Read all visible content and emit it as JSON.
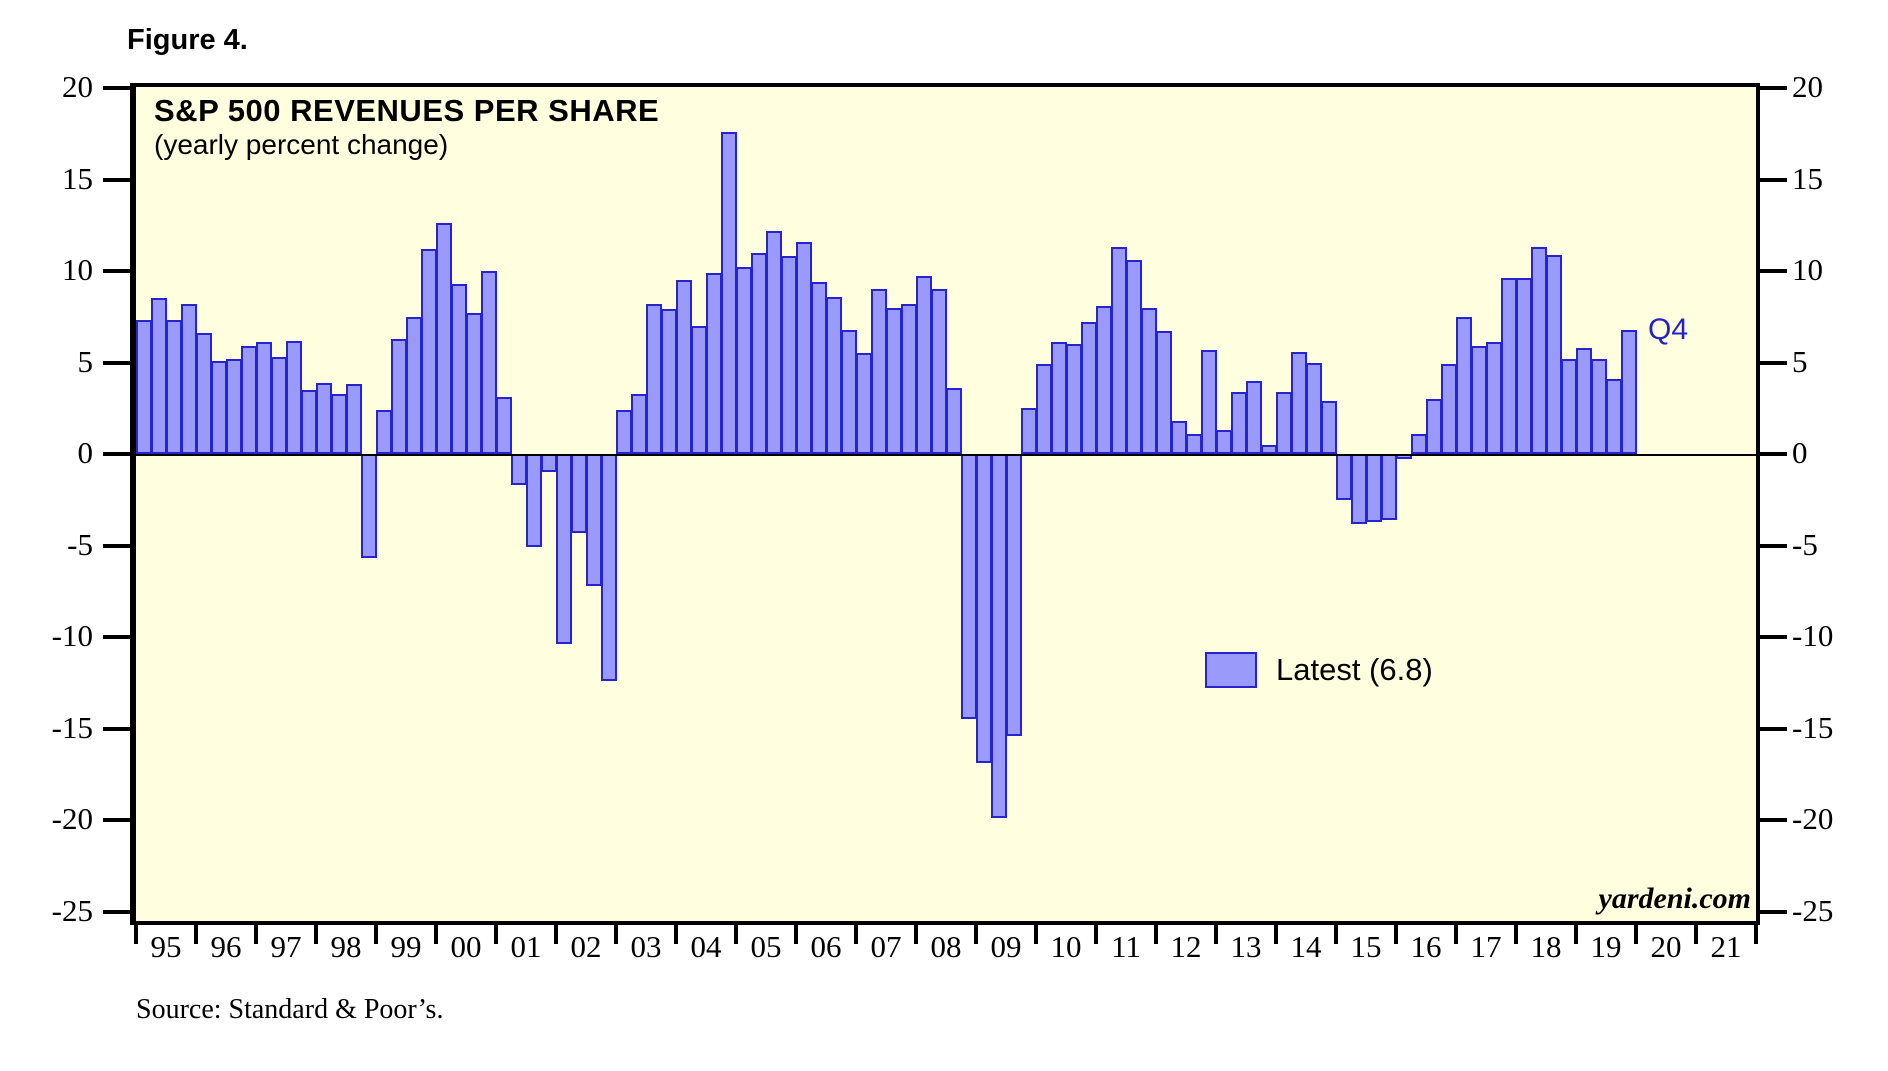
{
  "figure_label": "Figure 4.",
  "title": "S&P 500 REVENUES PER SHARE",
  "subtitle": "(yearly percent change)",
  "legend": {
    "label": "Latest (6.8)",
    "latest_value": 6.8
  },
  "annotations": {
    "last_bar_label": "Q4",
    "watermark": "yardeni.com"
  },
  "source_note": "Source: Standard & Poor’s.",
  "colors": {
    "plot_background": "#ffffe0",
    "bar_fill": "#999af9",
    "bar_border": "#2524ce",
    "annotation_blue": "#2222cc",
    "axis_black": "#000000"
  },
  "y_axis": {
    "ticks": [
      20,
      15,
      10,
      5,
      0,
      -5,
      -10,
      -15,
      -20,
      -25
    ],
    "max": 20.1,
    "min": -25.5
  },
  "x_axis": {
    "year_labels": [
      "95",
      "96",
      "97",
      "98",
      "99",
      "00",
      "01",
      "02",
      "03",
      "04",
      "05",
      "06",
      "07",
      "08",
      "09",
      "10",
      "11",
      "12",
      "13",
      "14",
      "15",
      "16",
      "17",
      "18",
      "19",
      "20",
      "21"
    ]
  },
  "chart_data": {
    "type": "bar",
    "title": "S&P 500 REVENUES PER SHARE (yearly percent change)",
    "xlabel": "",
    "ylabel": "yearly percent change",
    "ylim": [
      -25.5,
      20.1
    ],
    "grid": false,
    "legend_position": "center-right",
    "categories": [
      "1995Q1",
      "1995Q2",
      "1995Q3",
      "1995Q4",
      "1996Q1",
      "1996Q2",
      "1996Q3",
      "1996Q4",
      "1997Q1",
      "1997Q2",
      "1997Q3",
      "1997Q4",
      "1998Q1",
      "1998Q2",
      "1998Q3",
      "1998Q4",
      "1999Q1",
      "1999Q2",
      "1999Q3",
      "1999Q4",
      "2000Q1",
      "2000Q2",
      "2000Q3",
      "2000Q4",
      "2001Q1",
      "2001Q2",
      "2001Q3",
      "2001Q4",
      "2002Q1",
      "2002Q2",
      "2002Q3",
      "2002Q4",
      "2003Q1",
      "2003Q2",
      "2003Q3",
      "2003Q4",
      "2004Q1",
      "2004Q2",
      "2004Q3",
      "2004Q4",
      "2005Q1",
      "2005Q2",
      "2005Q3",
      "2005Q4",
      "2006Q1",
      "2006Q2",
      "2006Q3",
      "2006Q4",
      "2007Q1",
      "2007Q2",
      "2007Q3",
      "2007Q4",
      "2008Q1",
      "2008Q2",
      "2008Q3",
      "2008Q4",
      "2009Q1",
      "2009Q2",
      "2009Q3",
      "2009Q4",
      "2010Q1",
      "2010Q2",
      "2010Q3",
      "2010Q4",
      "2011Q1",
      "2011Q2",
      "2011Q3",
      "2011Q4",
      "2012Q1",
      "2012Q2",
      "2012Q3",
      "2012Q4",
      "2013Q1",
      "2013Q2",
      "2013Q3",
      "2013Q4",
      "2014Q1",
      "2014Q2",
      "2014Q3",
      "2014Q4",
      "2015Q1",
      "2015Q2",
      "2015Q3",
      "2015Q4",
      "2016Q1",
      "2016Q2",
      "2016Q3",
      "2016Q4",
      "2017Q1",
      "2017Q2",
      "2017Q3",
      "2017Q4",
      "2018Q1",
      "2018Q2",
      "2018Q3",
      "2018Q4",
      "2019Q1",
      "2019Q2",
      "2019Q3",
      "2019Q4"
    ],
    "values": [
      7.3,
      8.5,
      7.3,
      8.2,
      6.6,
      5.1,
      5.2,
      5.9,
      6.1,
      5.3,
      6.2,
      3.5,
      3.9,
      3.3,
      3.8,
      -5.7,
      2.4,
      6.3,
      7.5,
      11.2,
      12.6,
      9.3,
      7.7,
      10.0,
      3.1,
      -1.7,
      -5.1,
      -1.0,
      -10.4,
      -4.3,
      -7.2,
      -12.4,
      2.4,
      3.3,
      8.2,
      7.9,
      9.5,
      7.0,
      9.9,
      17.6,
      10.2,
      11.0,
      12.2,
      10.8,
      11.6,
      9.4,
      8.6,
      6.8,
      5.5,
      9.0,
      8.0,
      8.2,
      9.7,
      9.0,
      3.6,
      -14.5,
      -16.9,
      -19.9,
      -15.4,
      2.5,
      4.9,
      6.1,
      6.0,
      7.2,
      8.1,
      11.3,
      10.6,
      8.0,
      6.7,
      1.8,
      1.1,
      5.7,
      1.3,
      3.4,
      4.0,
      0.5,
      3.4,
      5.6,
      5.0,
      2.9,
      -2.5,
      -3.8,
      -3.7,
      -3.6,
      -0.3,
      1.1,
      3.0,
      4.9,
      7.5,
      5.9,
      6.1,
      9.6,
      9.6,
      11.3,
      10.9,
      5.2,
      5.8,
      5.2,
      4.1,
      6.8
    ]
  }
}
